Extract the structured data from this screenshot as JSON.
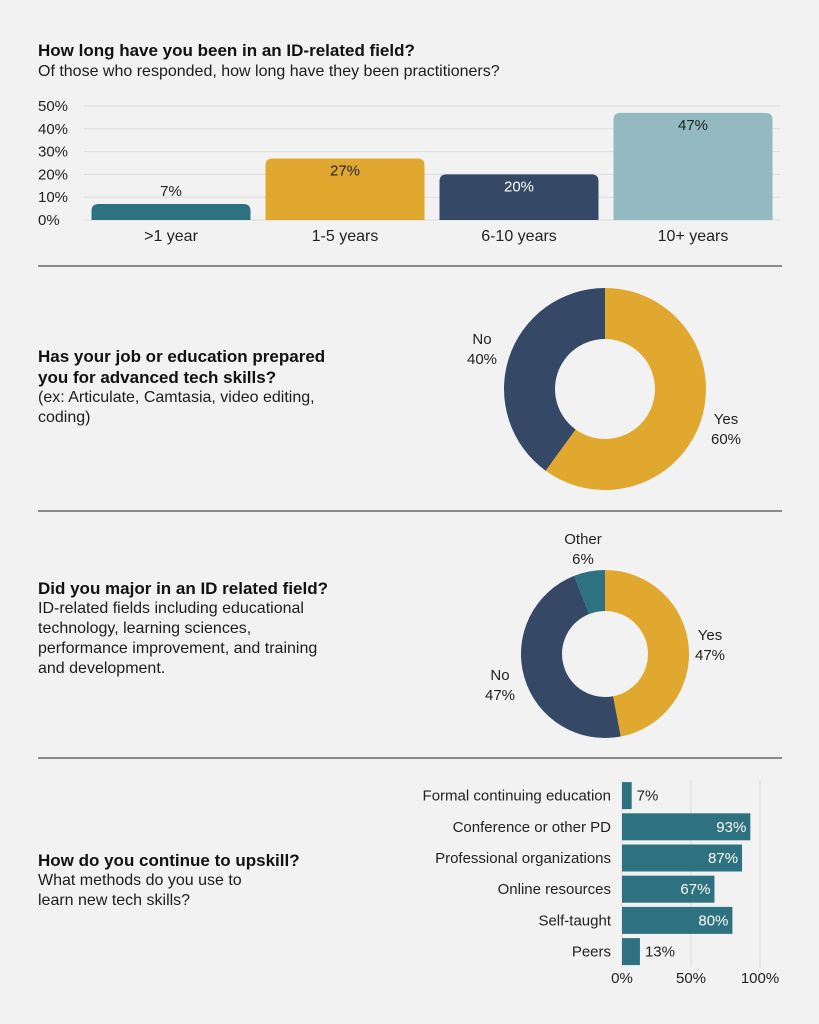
{
  "section1": {
    "title": "How long have you been in an ID-related field?",
    "subtitle": "Of those who responded, how long have they been practitioners?"
  },
  "section2": {
    "title_line1": "Has your job or education prepared",
    "title_line2": "you for advanced tech skills?",
    "sub_line1": "(ex: Articulate, Camtasia, video editing,",
    "sub_line2": "coding)"
  },
  "section3": {
    "title": "Did you major in an ID related field?",
    "sub_line1": "ID-related fields including educational",
    "sub_line2": "technology, learning sciences,",
    "sub_line3": "performance improvement, and training",
    "sub_line4": "and development."
  },
  "section4": {
    "title": "How do you continue to upskill?",
    "sub_line1": "What methods do you use to",
    "sub_line2": "learn new tech skills?"
  },
  "chart_data": [
    {
      "type": "bar",
      "categories": [
        ">1 year",
        "1-5 years",
        "6-10 years",
        "10+ years"
      ],
      "values": [
        7,
        27,
        20,
        47
      ],
      "data_labels": [
        "7%",
        "27%",
        "20%",
        "47%"
      ],
      "colors": [
        "#2e7180",
        "#e0a82e",
        "#354866",
        "#93b9c1"
      ],
      "ylim": [
        0,
        50
      ],
      "yticks": [
        "50%",
        "40%",
        "30%",
        "20%",
        "10%",
        "0%"
      ],
      "ytick_values": [
        50,
        40,
        30,
        20,
        10,
        0
      ],
      "grid": true
    },
    {
      "type": "pie",
      "donut": true,
      "slices": [
        {
          "label": "Yes",
          "value": 60,
          "value_label": "60%",
          "color": "#e0a82e"
        },
        {
          "label": "No",
          "value": 40,
          "value_label": "40%",
          "color": "#354866"
        }
      ]
    },
    {
      "type": "pie",
      "donut": true,
      "slices": [
        {
          "label": "Yes",
          "value": 47,
          "value_label": "47%",
          "color": "#e0a82e"
        },
        {
          "label": "No",
          "value": 47,
          "value_label": "47%",
          "color": "#354866"
        },
        {
          "label": "Other",
          "value": 6,
          "value_label": "6%",
          "color": "#2e7180"
        }
      ]
    },
    {
      "type": "bar",
      "orientation": "horizontal",
      "categories": [
        "Formal continuing education",
        "Conference or other PD",
        "Professional organizations",
        "Online resources",
        "Self-taught",
        "Peers"
      ],
      "values": [
        7,
        93,
        87,
        67,
        80,
        13
      ],
      "data_labels": [
        "7%",
        "93%",
        "87%",
        "67%",
        "80%",
        "13%"
      ],
      "color": "#2e7180",
      "xlim": [
        0,
        100
      ],
      "xticks": [
        "0%",
        "50%",
        "100%"
      ],
      "xtick_values": [
        0,
        50,
        100
      ],
      "grid": true
    }
  ]
}
